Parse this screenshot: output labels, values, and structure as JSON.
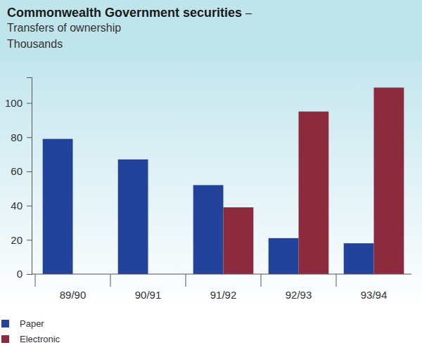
{
  "chart_data": {
    "type": "bar",
    "title": "Commonwealth Government securities",
    "subtitle": "– Transfers of ownership",
    "y_label": "Thousands",
    "categories": [
      "89/90",
      "90/91",
      "91/92",
      "92/93",
      "93/94"
    ],
    "series": [
      {
        "name": "Paper",
        "color": "#23439b",
        "values": [
          79,
          67,
          52,
          21,
          18
        ]
      },
      {
        "name": "Electronic",
        "color": "#8c2b3d",
        "values": [
          null,
          null,
          39,
          95,
          109
        ]
      }
    ],
    "ylim": [
      0,
      115
    ],
    "yticks": [
      0,
      20,
      40,
      60,
      80,
      100
    ],
    "grid": false,
    "legend": "bottom-left"
  }
}
